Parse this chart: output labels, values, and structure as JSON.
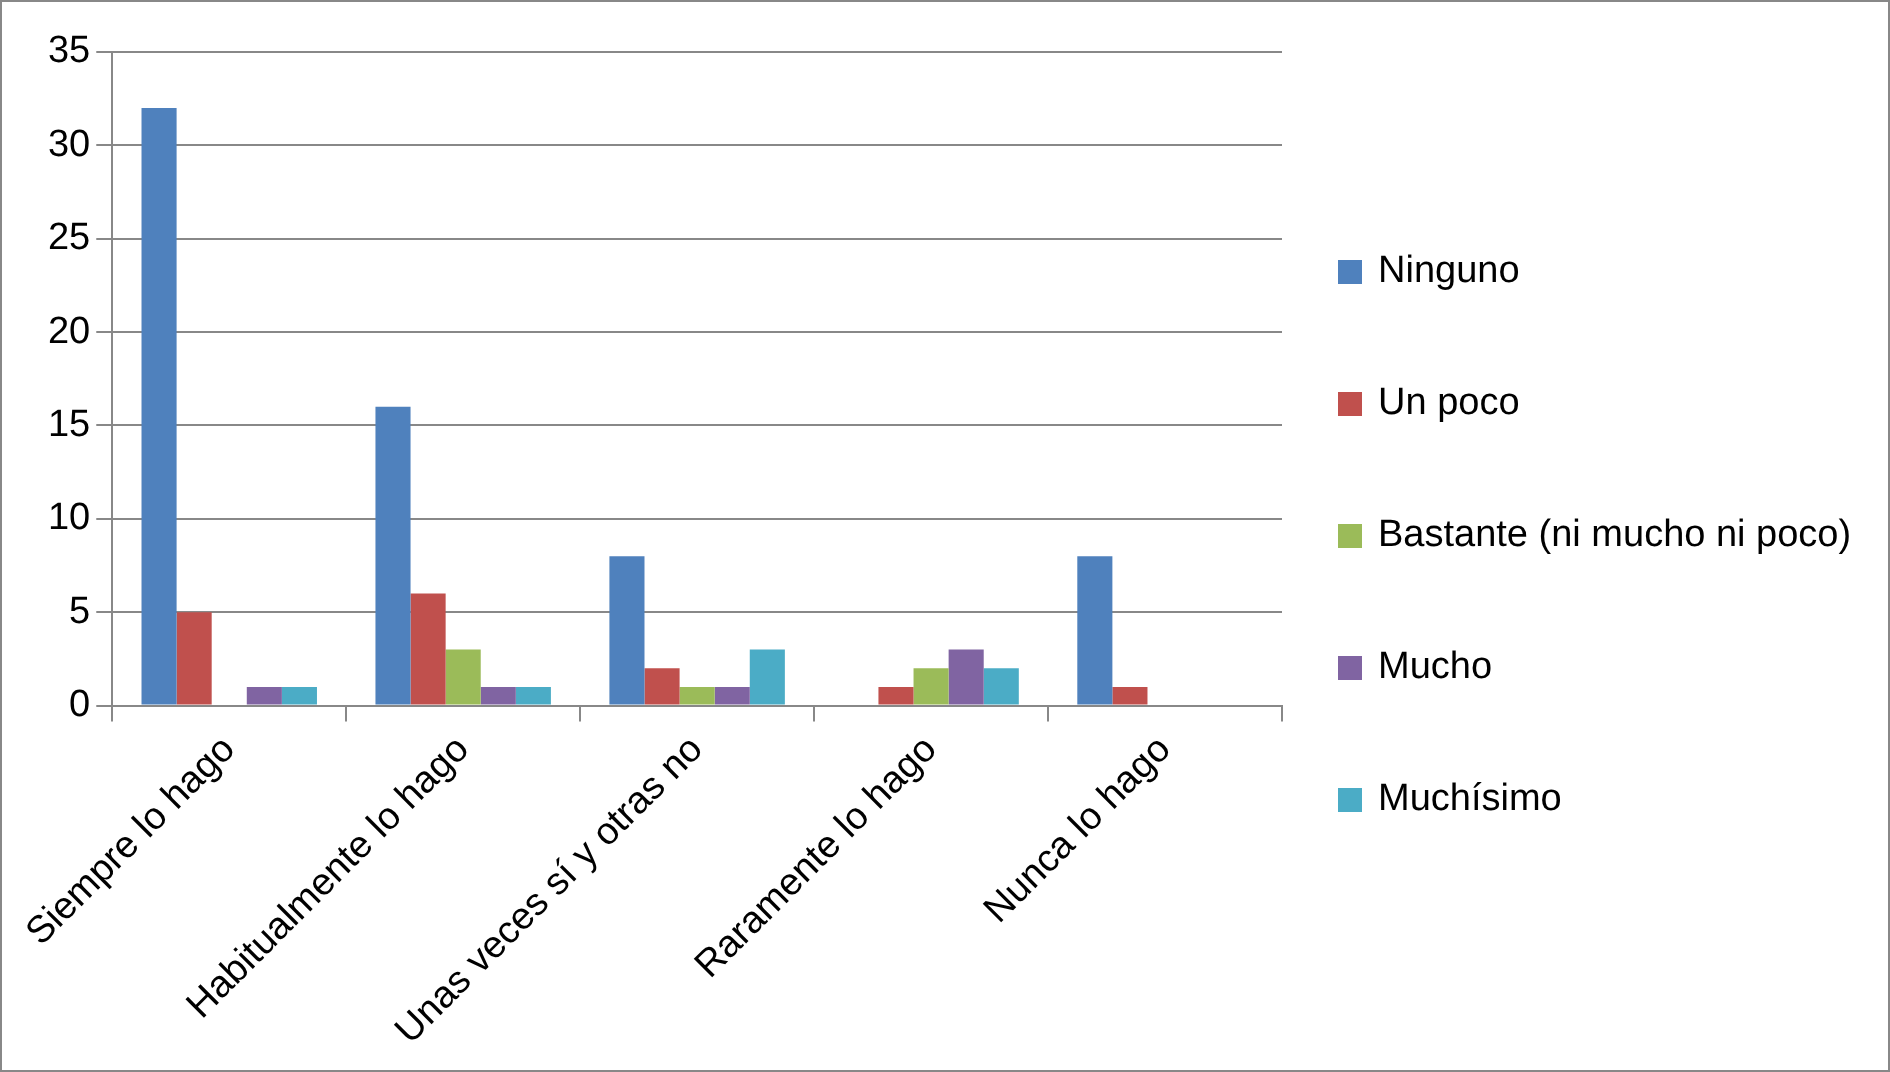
{
  "chart_data": {
    "type": "bar",
    "categories": [
      "Siempre lo hago",
      "Habitualmente lo hago",
      "Unas veces sí y otras no",
      "Raramente lo hago",
      "Nunca lo hago"
    ],
    "series": [
      {
        "name": "Ninguno",
        "color": "#4f81bd",
        "values": [
          32,
          16,
          8,
          0,
          8
        ]
      },
      {
        "name": "Un poco",
        "color": "#c0504d",
        "values": [
          5,
          6,
          2,
          1,
          1
        ]
      },
      {
        "name": "Bastante  (ni mucho ni poco)",
        "color": "#9bbb59",
        "values": [
          0,
          3,
          1,
          2,
          0
        ]
      },
      {
        "name": "Mucho",
        "color": "#8064a2",
        "values": [
          1,
          1,
          1,
          3,
          0
        ]
      },
      {
        "name": "Muchísimo",
        "color": "#4bacc6",
        "values": [
          1,
          1,
          3,
          2,
          0
        ]
      }
    ],
    "ylim": [
      0,
      35
    ],
    "yticks": [
      0,
      5,
      10,
      15,
      20,
      25,
      30,
      35
    ],
    "grid": "y",
    "legend": "right"
  }
}
